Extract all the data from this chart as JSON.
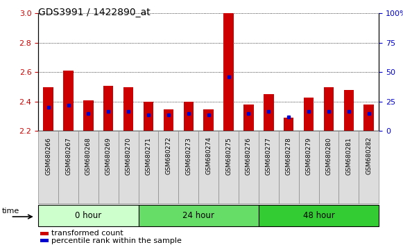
{
  "title": "GDS3991 / 1422890_at",
  "samples": [
    "GSM680266",
    "GSM680267",
    "GSM680268",
    "GSM680269",
    "GSM680270",
    "GSM680271",
    "GSM680272",
    "GSM680273",
    "GSM680274",
    "GSM680275",
    "GSM680276",
    "GSM680277",
    "GSM680278",
    "GSM680279",
    "GSM680280",
    "GSM680281",
    "GSM680282"
  ],
  "transformed_counts": [
    2.5,
    2.61,
    2.41,
    2.51,
    2.5,
    2.4,
    2.35,
    2.4,
    2.35,
    3.0,
    2.38,
    2.45,
    2.29,
    2.43,
    2.5,
    2.48,
    2.38
  ],
  "percentile_ranks": [
    20,
    22,
    15,
    17,
    17,
    14,
    14,
    15,
    14,
    46,
    15,
    17,
    12,
    17,
    17,
    17,
    15
  ],
  "groups": [
    {
      "label": "0 hour",
      "start": 0,
      "end": 5,
      "color_light": "#ccffcc",
      "color_dark": "#ccffcc"
    },
    {
      "label": "24 hour",
      "start": 5,
      "end": 11,
      "color_light": "#66dd66",
      "color_dark": "#66dd66"
    },
    {
      "label": "48 hour",
      "start": 11,
      "end": 17,
      "color_light": "#33cc33",
      "color_dark": "#33cc33"
    }
  ],
  "ylim_left": [
    2.2,
    3.0
  ],
  "ylim_right": [
    0,
    100
  ],
  "yticks_left": [
    2.2,
    2.4,
    2.6,
    2.8,
    3.0
  ],
  "yticks_right": [
    0,
    25,
    50,
    75,
    100
  ],
  "bar_color": "#cc0000",
  "percentile_color": "#0000cc",
  "bar_width": 0.5,
  "bg_color": "#ffffff",
  "tick_label_color_left": "#cc0000",
  "tick_label_color_right": "#0000cc",
  "legend_items": [
    "transformed count",
    "percentile rank within the sample"
  ],
  "legend_colors": [
    "#cc0000",
    "#0000cc"
  ],
  "time_label": "time"
}
